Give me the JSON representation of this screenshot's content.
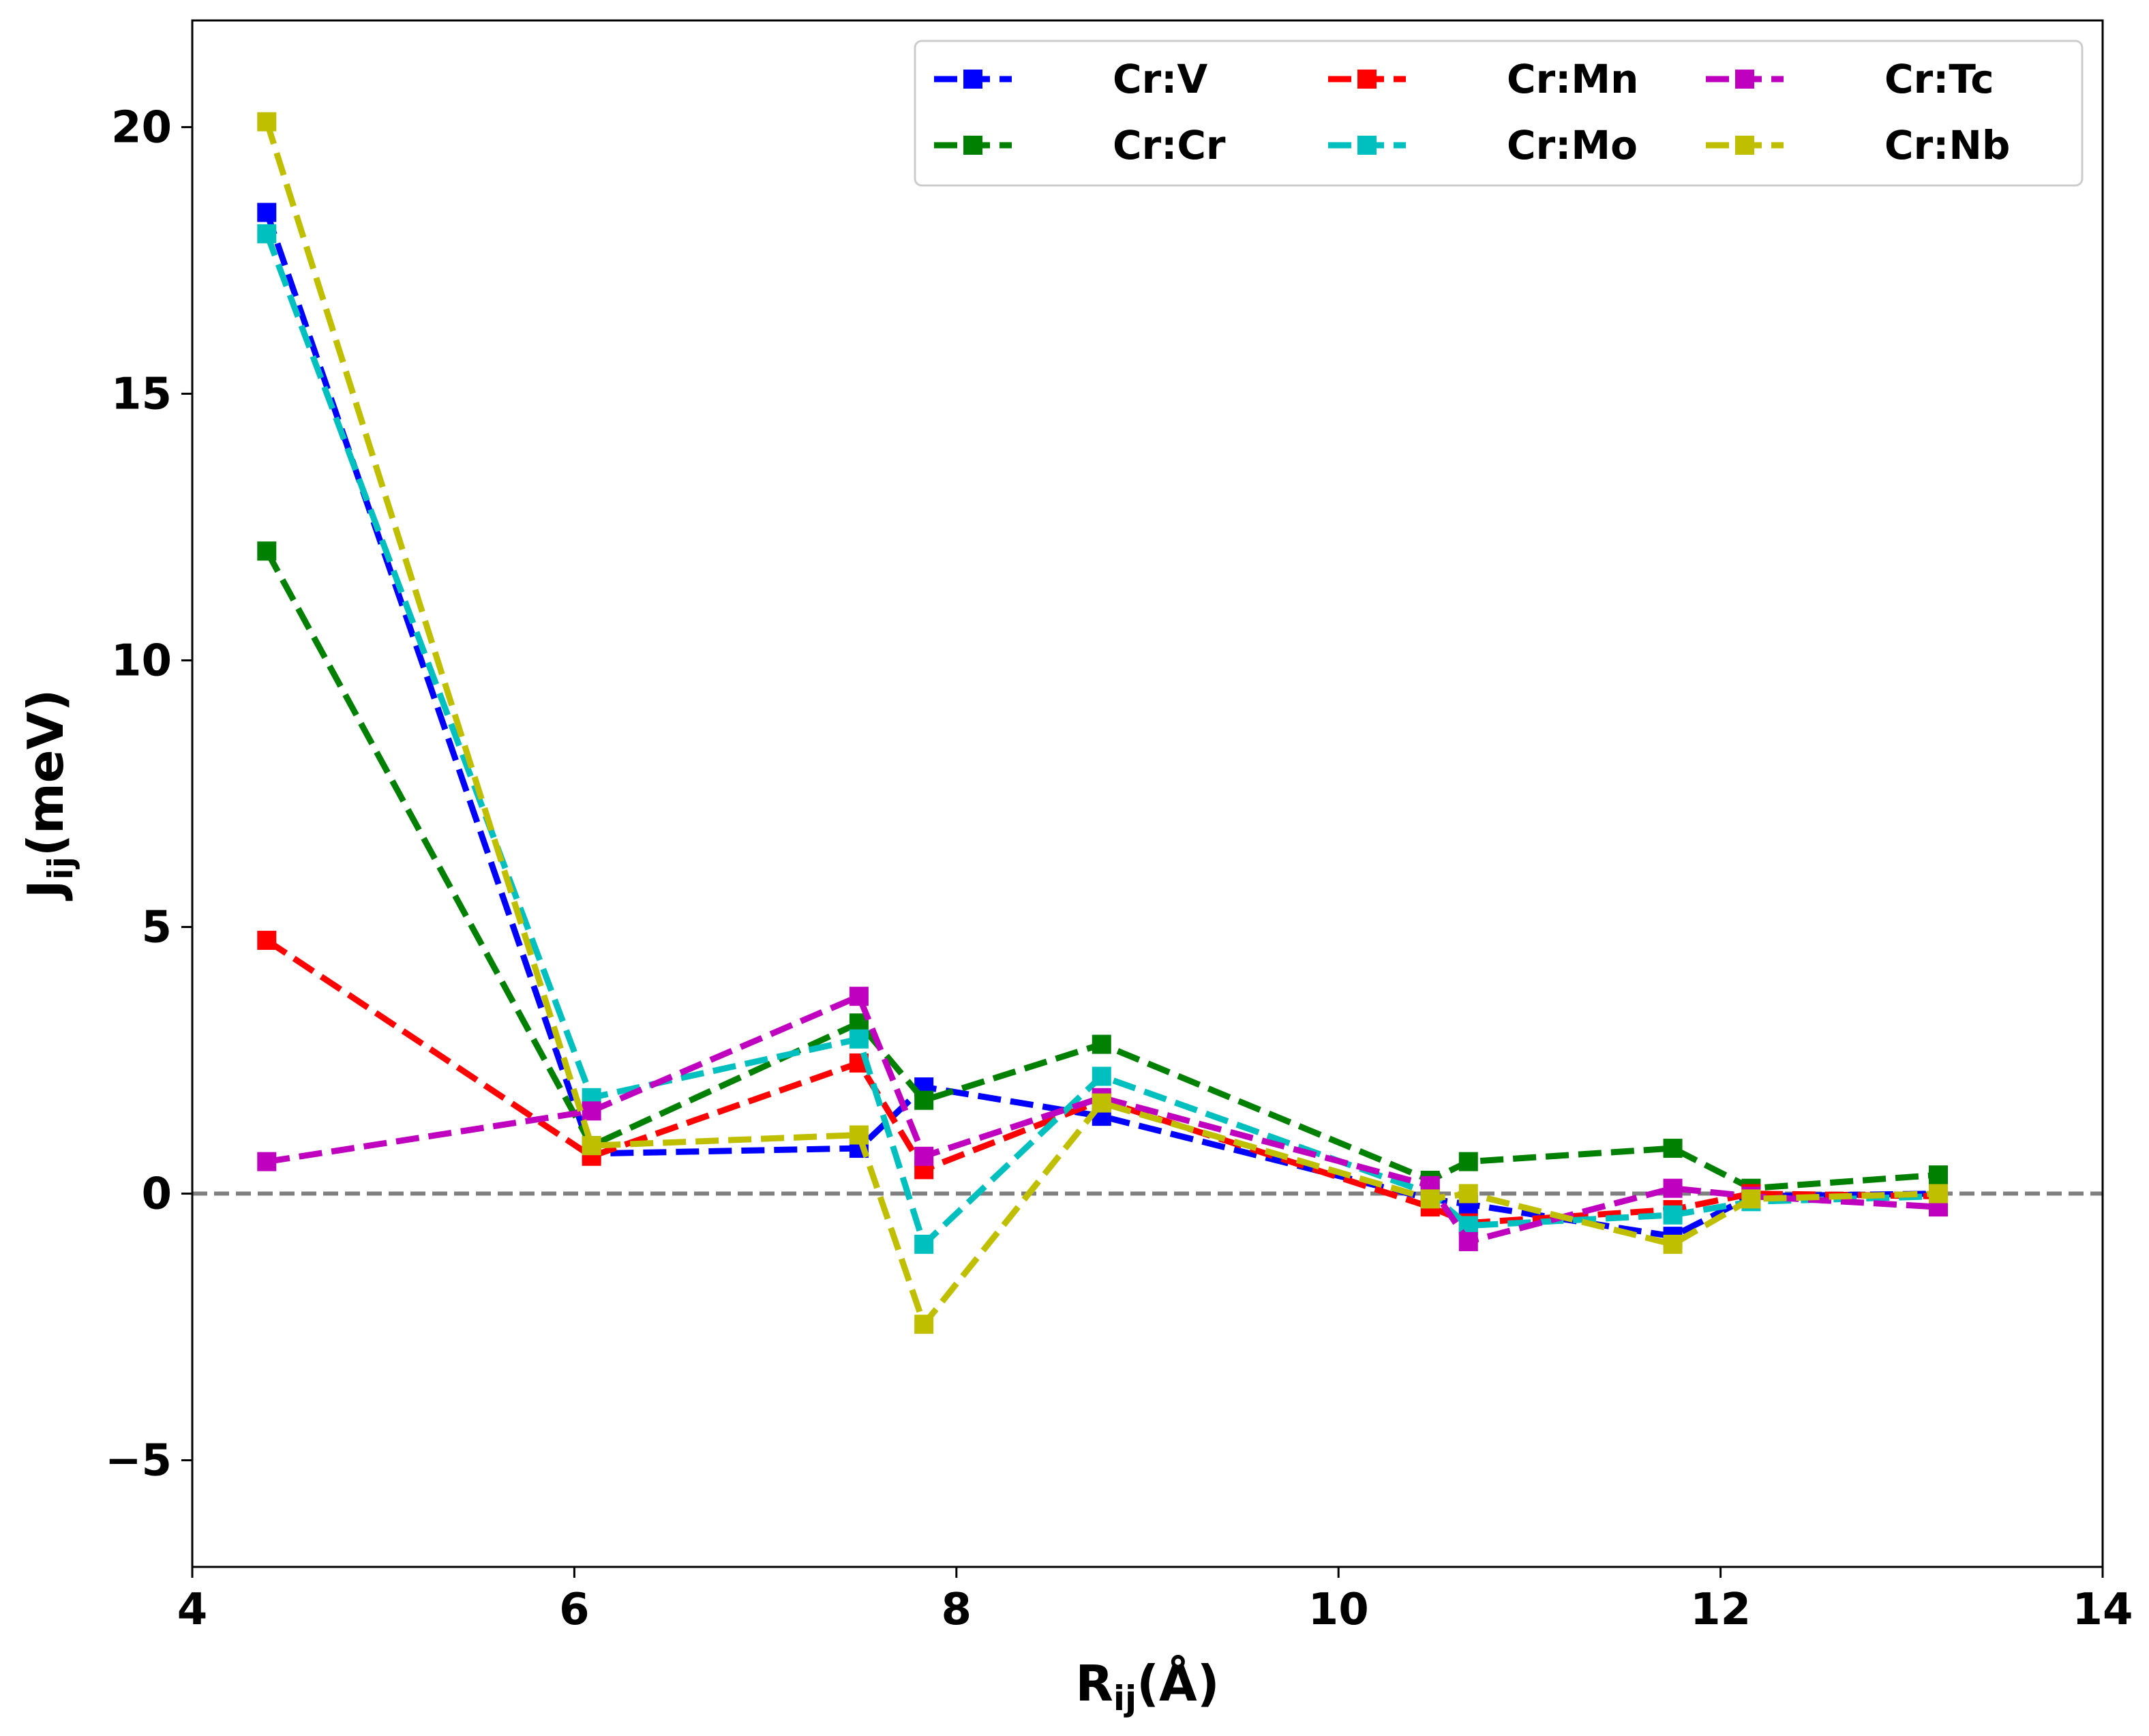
{
  "chart_data": {
    "type": "line",
    "title": "",
    "xlabel": {
      "main": "R",
      "sub": "ij",
      "rest": "(Å)"
    },
    "ylabel": {
      "main": "J",
      "sub": "ij",
      "rest": "(meV)"
    },
    "xlim": [
      4,
      14
    ],
    "ylim": [
      -7,
      22
    ],
    "xticks": [
      4,
      6,
      8,
      10,
      12,
      14
    ],
    "yticks": [
      -5,
      0,
      5,
      10,
      15,
      20
    ],
    "ytick_labels": [
      "−5",
      "0",
      "5",
      "10",
      "15",
      "20"
    ],
    "reference_line": {
      "y": 0,
      "style": "dashed",
      "color": "#808080"
    },
    "legend_position": "upper-right",
    "legend_columns": 3,
    "x": [
      4.39,
      6.09,
      7.49,
      7.83,
      8.76,
      10.48,
      10.68,
      11.75,
      12.16,
      13.14
    ],
    "series": [
      {
        "name": "Cr:V",
        "color": "#0000ff",
        "values": [
          18.4,
          0.75,
          0.85,
          2.0,
          1.45,
          -0.1,
          -0.2,
          -0.8,
          -0.05,
          0.0
        ]
      },
      {
        "name": "Cr:Cr",
        "color": "#008000",
        "values": [
          12.05,
          0.9,
          3.2,
          1.75,
          2.8,
          0.25,
          0.6,
          0.85,
          0.1,
          0.35
        ]
      },
      {
        "name": "Cr:Mn",
        "color": "#ff0000",
        "values": [
          4.75,
          0.7,
          2.45,
          0.45,
          1.75,
          -0.25,
          -0.55,
          -0.3,
          0.0,
          -0.05
        ]
      },
      {
        "name": "Cr:Mo",
        "color": "#00bfbf",
        "values": [
          18.0,
          1.8,
          2.9,
          -0.95,
          2.2,
          0.0,
          -0.6,
          -0.4,
          -0.15,
          -0.05
        ]
      },
      {
        "name": "Cr:Tc",
        "color": "#bf00bf",
        "values": [
          0.6,
          1.55,
          3.7,
          0.7,
          1.8,
          0.15,
          -0.9,
          0.1,
          -0.05,
          -0.25
        ]
      },
      {
        "name": "Cr:Nb",
        "color": "#bfbf00",
        "values": [
          20.1,
          0.9,
          1.1,
          -2.45,
          1.7,
          -0.1,
          0.0,
          -0.95,
          -0.1,
          0.0
        ]
      }
    ]
  }
}
